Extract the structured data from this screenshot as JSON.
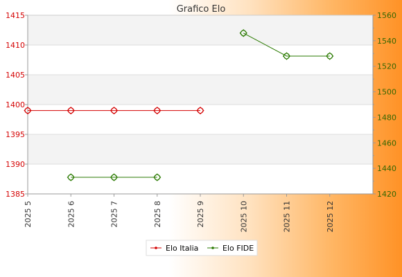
{
  "chart_data": {
    "type": "line",
    "title": "Grafico Elo",
    "categories": [
      "2025 5",
      "2025 6",
      "2025 7",
      "2025 8",
      "2025 9",
      "2025 10",
      "2025 11",
      "2025 12"
    ],
    "y_left": {
      "min": 1385,
      "max": 1415,
      "step": 5,
      "color": "#d40000"
    },
    "y_right": {
      "min": 1420,
      "max": 1560,
      "step": 20,
      "color": "#336600"
    },
    "grid": true,
    "legend_placement": "bottom",
    "series": [
      {
        "name": "Elo Italia",
        "axis": "left",
        "color": "#d40000",
        "values": [
          1399,
          1399,
          1399,
          1399,
          1399,
          null,
          null,
          null
        ]
      },
      {
        "name": "Elo FIDE",
        "axis": "right",
        "color": "#2a7a00",
        "values": [
          null,
          1433,
          1433,
          1433,
          null,
          1546,
          1528,
          1528
        ]
      }
    ]
  }
}
